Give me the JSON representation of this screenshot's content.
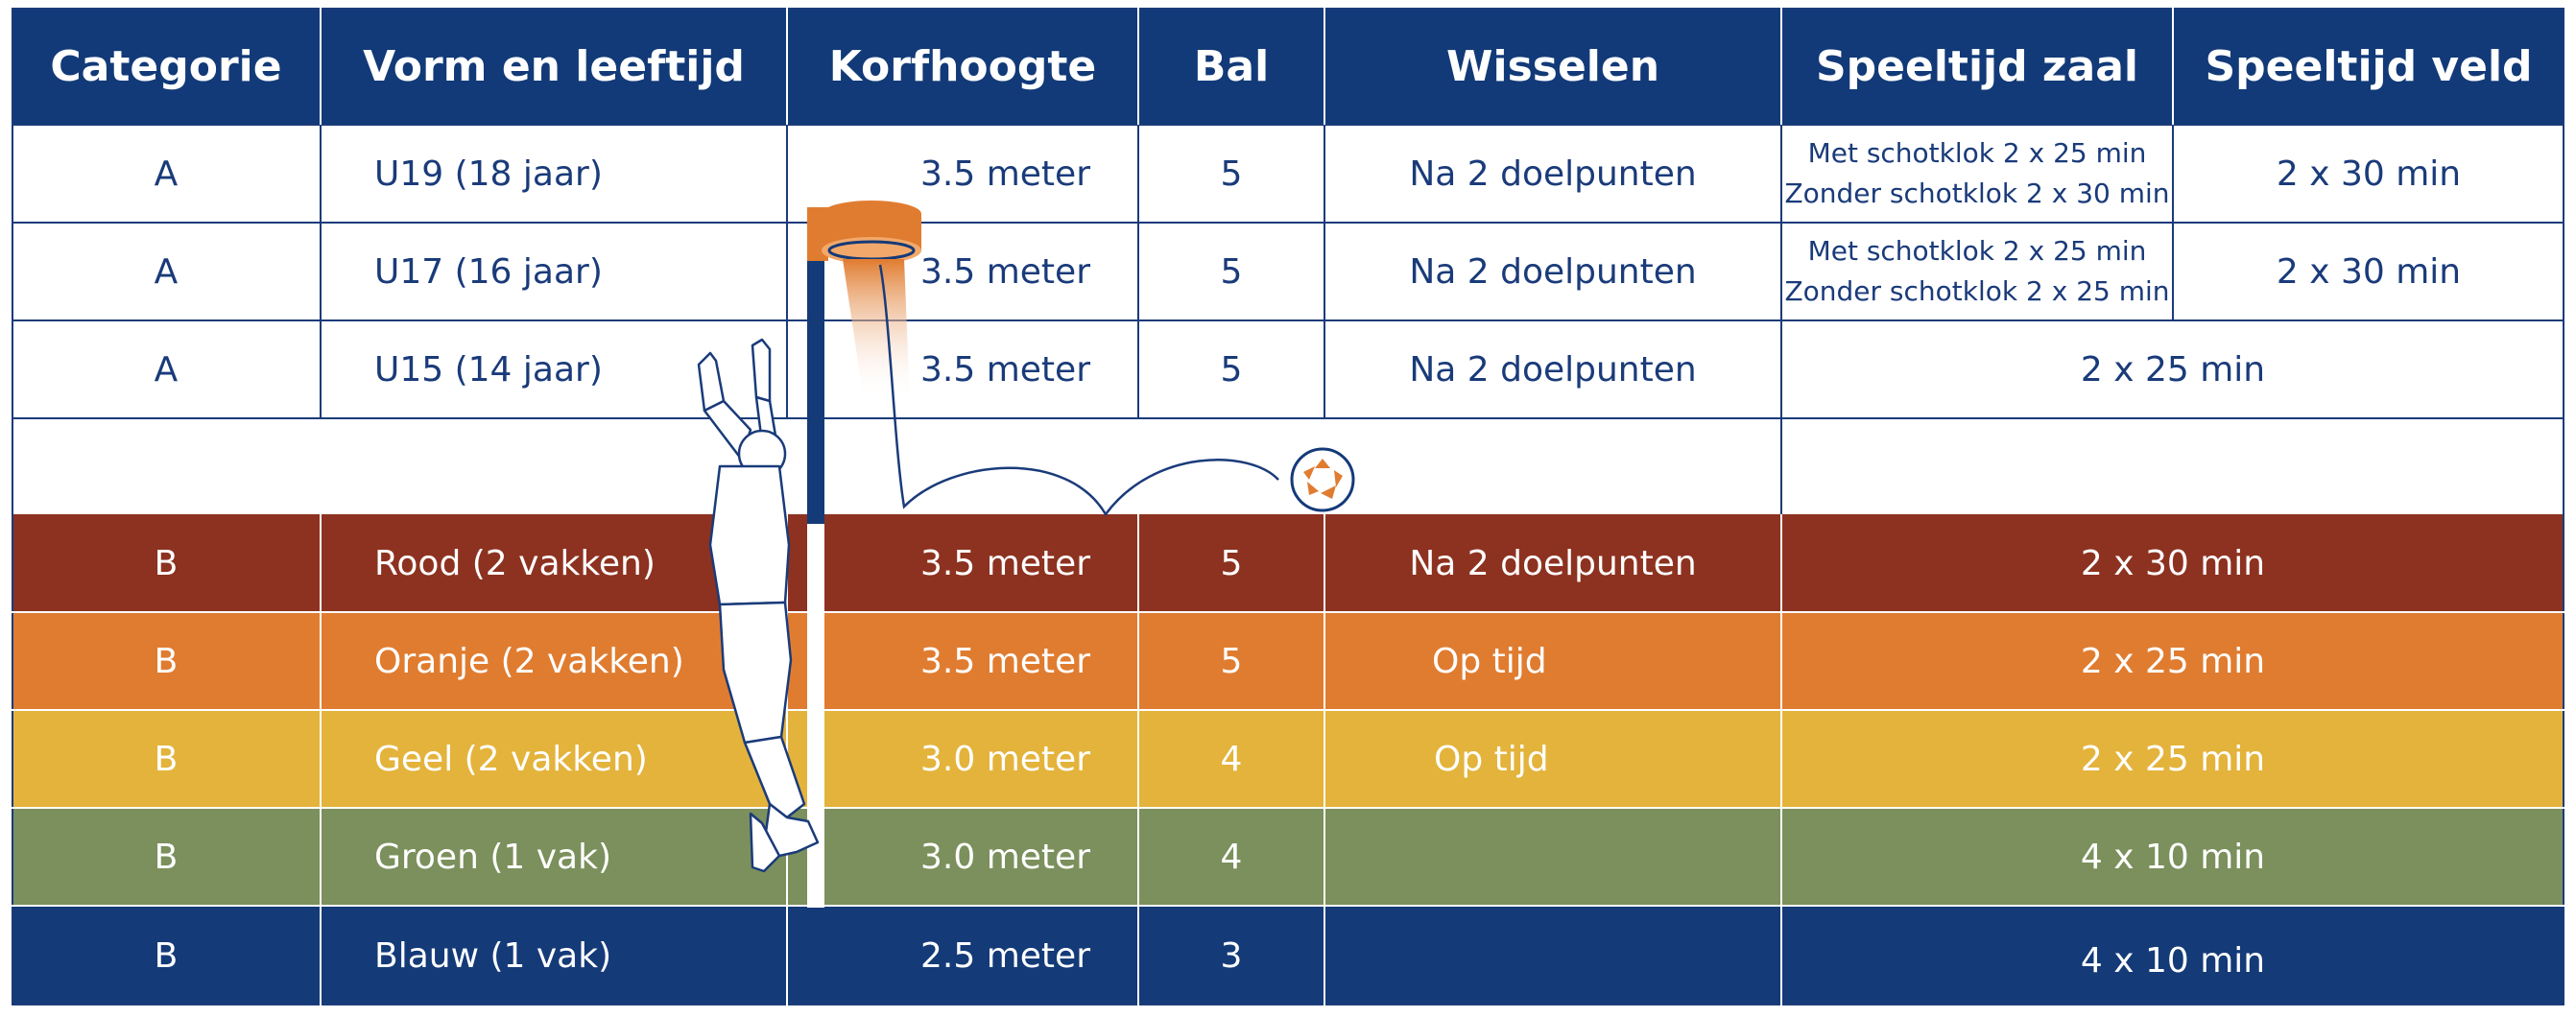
{
  "headers": [
    "Categorie",
    "Vorm en leeftijd",
    "Korfhoogte",
    "Bal",
    "Wisselen",
    "Speeltijd zaal",
    "Speeltijd veld"
  ],
  "rows_a": [
    {
      "cat": "A",
      "vorm": "U19 (18 jaar)",
      "korf": "3.5 meter",
      "bal": "5",
      "wissel": "Na 2 doelpunten",
      "zaal": [
        "Met schotklok 2 x 25 min",
        "Zonder schotklok 2 x 30 min"
      ],
      "veld": "2 x 30 min"
    },
    {
      "cat": "A",
      "vorm": "U17 (16 jaar)",
      "korf": "3.5 meter",
      "bal": "5",
      "wissel": "Na 2 doelpunten",
      "zaal": [
        "Met schotklok 2 x 25 min",
        "Zonder schotklok 2 x 25 min"
      ],
      "veld": "2 x 30 min"
    },
    {
      "cat": "A",
      "vorm": "U15 (14 jaar)",
      "korf": "3.5 meter",
      "bal": "5",
      "wissel": "Na 2 doelpunten",
      "speeltijd": "2 x 25 min"
    }
  ],
  "rows_b": [
    {
      "cat": "B",
      "vorm": "Rood (2 vakken)",
      "korf": "3.5 meter",
      "bal": "5",
      "wissel": "Na 2 doelpunten",
      "speeltijd": "2 x 30 min",
      "color": "#8d3220"
    },
    {
      "cat": "B",
      "vorm": "Oranje (2 vakken)",
      "korf": "3.5 meter",
      "bal": "5",
      "wissel": "Op tijd",
      "speeltijd": "2 x 25 min",
      "color": "#e07c30"
    },
    {
      "cat": "B",
      "vorm": "Geel (2 vakken)",
      "korf": "3.0 meter",
      "bal": "4",
      "wissel": "Op tijd",
      "speeltijd": "2 x 25 min",
      "color": "#e3b33b"
    },
    {
      "cat": "B",
      "vorm": "Groen (1 vak)",
      "korf": "3.0 meter",
      "bal": "4",
      "wissel": "",
      "speeltijd": "4 x 10 min",
      "color": "#7b905c"
    },
    {
      "cat": "B",
      "vorm": "Blauw (1 vak)",
      "korf": "2.5 meter",
      "bal": "3",
      "wissel": "",
      "speeltijd": "4 x 10 min",
      "color": "#143a78"
    }
  ],
  "colors": {
    "header": "#123a78",
    "text_dark": "#1a3b7a",
    "basket_orange": "#e07c30"
  },
  "illustration": {
    "icons": [
      "korfball-player-icon",
      "korf-basket-icon",
      "ball-icon"
    ]
  }
}
